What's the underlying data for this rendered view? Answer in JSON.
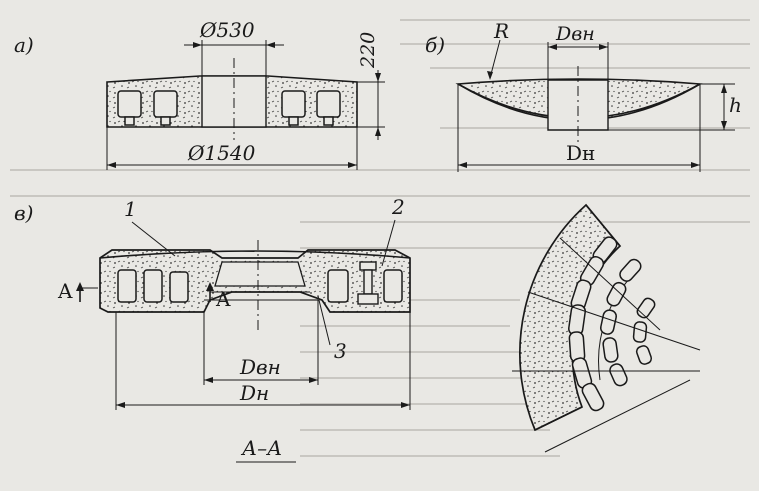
{
  "figure_a": {
    "panel_label": "а)",
    "dim_inner": "Ø530",
    "dim_height": "220",
    "dim_outer": "Ø1540"
  },
  "figure_b": {
    "panel_label": "б)",
    "radius_label": "R",
    "dim_inner": "Dвн",
    "dim_height": "h",
    "dim_outer": "Dн"
  },
  "figure_v": {
    "panel_label": "в)",
    "callout_1": "1",
    "callout_2": "2",
    "callout_3": "3",
    "section_mark_left": "A",
    "section_mark_right": "A",
    "dim_inner": "Dвн",
    "dim_outer": "Dн",
    "section_title": "А–А"
  },
  "colors": {
    "ink": "#1a1a1a",
    "paper": "#e9e8e4"
  }
}
